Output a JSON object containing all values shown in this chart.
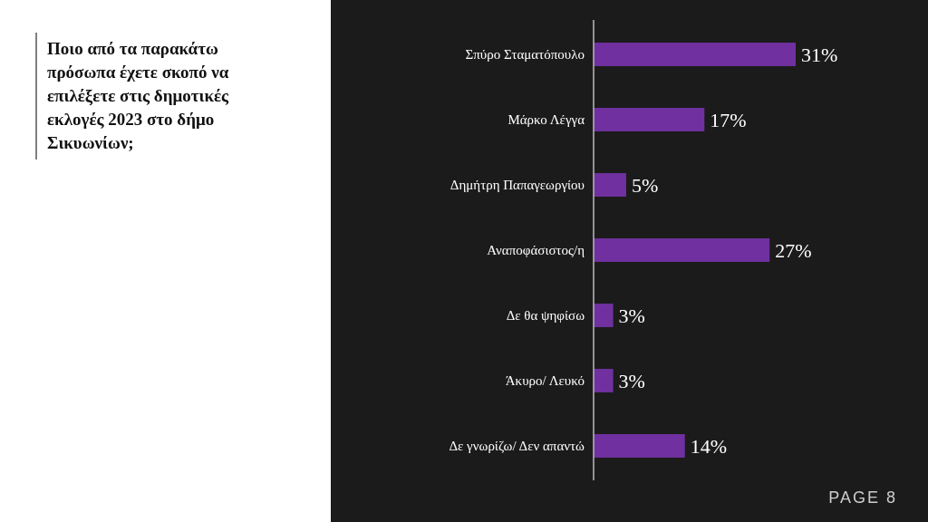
{
  "chart_data": {
    "type": "bar",
    "orientation": "horizontal",
    "title": "Ποιο από τα παρακάτω πρόσωπα έχετε σκοπό να επιλέξετε στις δημοτικές εκλογές 2023 στο δήμο Σικυωνίων;",
    "categories": [
      "Σπύρο Σταματόπουλο",
      "Μάρκο Λέγγα",
      "Δημήτρη Παπαγεωργίου",
      "Αναποφάσιστος/η",
      "Δε θα ψηφίσω",
      "Άκυρο/ Λευκό",
      "Δε γνωρίζω/ Δεν απαντώ"
    ],
    "values": [
      31,
      17,
      5,
      27,
      3,
      3,
      14
    ],
    "value_labels": [
      "31%",
      "17%",
      "5%",
      "27%",
      "3%",
      "3%",
      "14%"
    ],
    "color": "#7030a0",
    "annotations": [
      "PAGE 8"
    ]
  }
}
